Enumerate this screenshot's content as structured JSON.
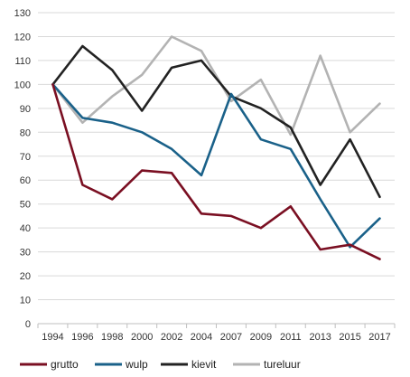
{
  "chart_data": {
    "type": "line",
    "title": "",
    "xlabel": "",
    "ylabel": "",
    "ylim": [
      0,
      130
    ],
    "yticks": [
      0,
      10,
      20,
      30,
      40,
      50,
      60,
      70,
      80,
      90,
      100,
      110,
      120,
      130
    ],
    "categories": [
      "1994",
      "1996",
      "1998",
      "2000",
      "2002",
      "2004",
      "2007",
      "2009",
      "2011",
      "2013",
      "2015",
      "2017"
    ],
    "grid": "horizontal",
    "legend_position": "bottom",
    "series": [
      {
        "name": "grutto",
        "color": "#7a0f22",
        "values": [
          100,
          58,
          52,
          64,
          63,
          46,
          45,
          40,
          49,
          31,
          33,
          27
        ]
      },
      {
        "name": "wulp",
        "color": "#1a6189",
        "values": [
          100,
          86,
          84,
          80,
          73,
          62,
          96,
          77,
          73,
          52,
          32,
          44
        ]
      },
      {
        "name": "kievit",
        "color": "#222222",
        "values": [
          100,
          116,
          106,
          89,
          107,
          110,
          95,
          90,
          82,
          58,
          77,
          53
        ]
      },
      {
        "name": "tureluur",
        "color": "#b3b3b3",
        "values": [
          100,
          84,
          95,
          104,
          120,
          114,
          93,
          102,
          79,
          112,
          80,
          92
        ]
      }
    ]
  }
}
